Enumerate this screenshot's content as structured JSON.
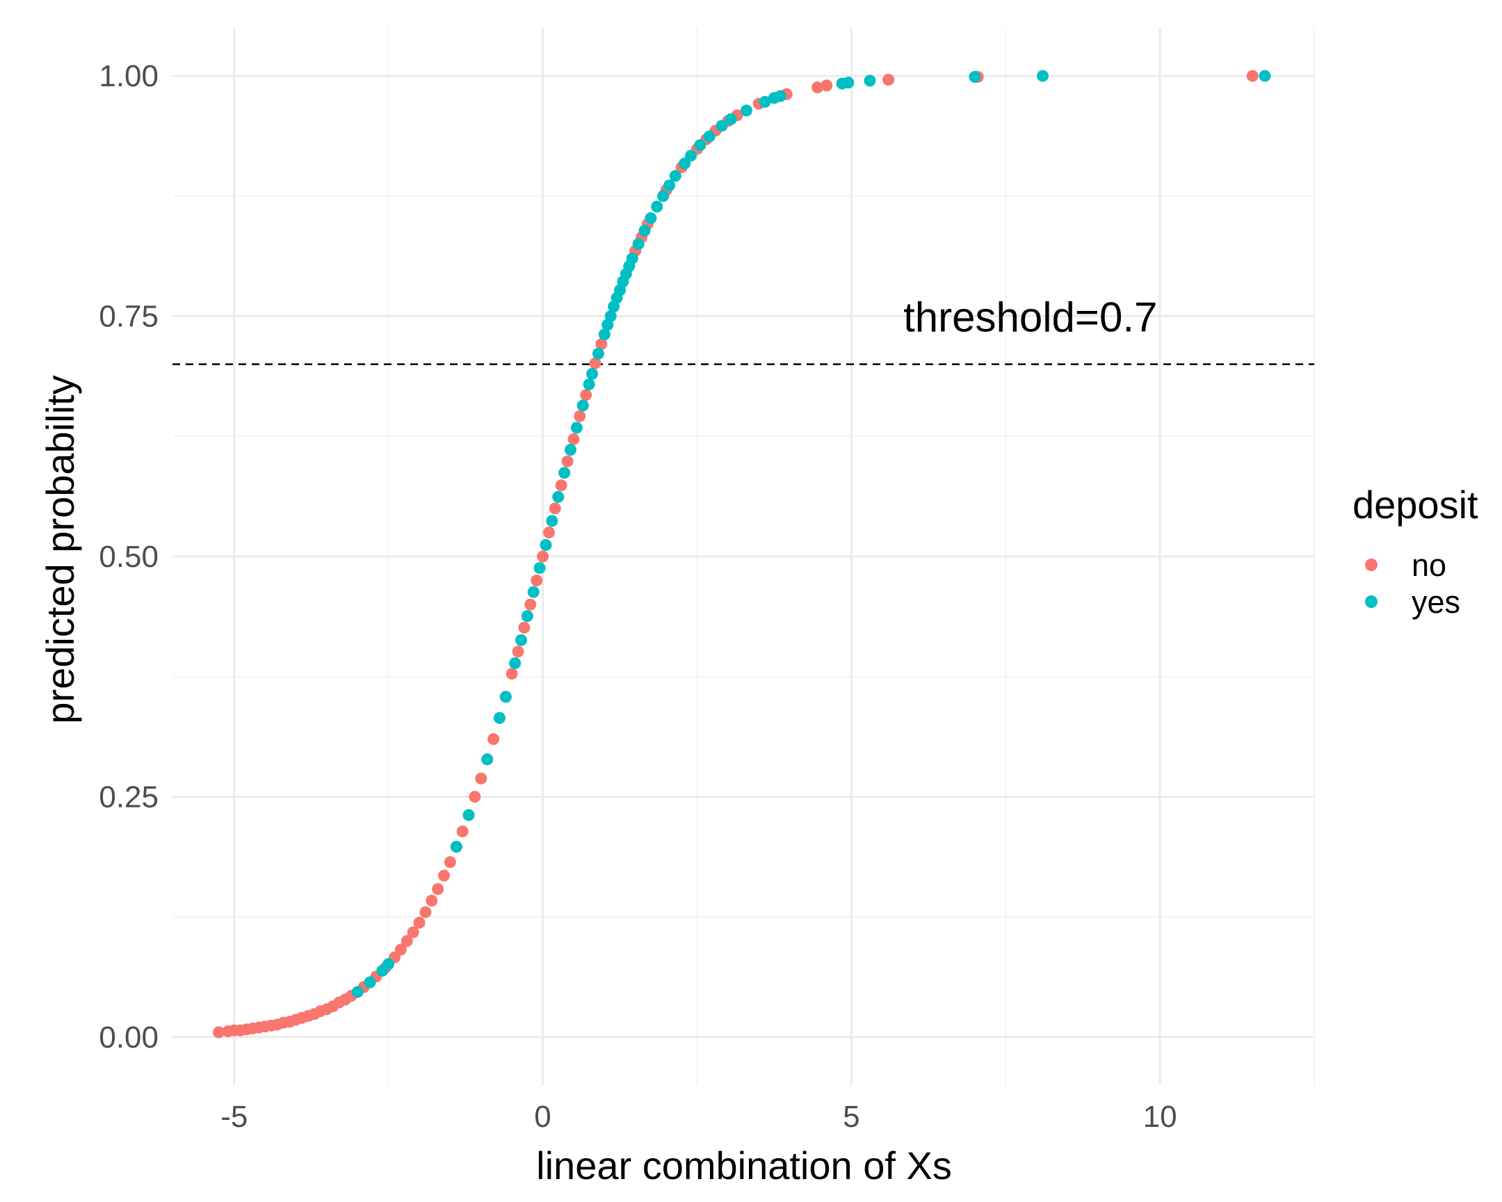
{
  "chart_data": {
    "type": "scatter",
    "title": "",
    "xlabel": "linear combination of Xs",
    "ylabel": "predicted probability",
    "xlim": [
      -6.0,
      12.5
    ],
    "ylim": [
      -0.05,
      1.05
    ],
    "x_ticks": [
      -5,
      0,
      5,
      10
    ],
    "x_tick_labels": [
      "-5",
      "0",
      "5",
      "10"
    ],
    "y_ticks": [
      0.0,
      0.25,
      0.5,
      0.75,
      1.0
    ],
    "y_tick_labels": [
      "0.00",
      "0.25",
      "0.50",
      "0.75",
      "1.00"
    ],
    "grid": true,
    "legend": {
      "title": "deposit",
      "placement": "right",
      "entries": [
        {
          "label": "no",
          "color": "#F8766D"
        },
        {
          "label": "yes",
          "color": "#00BFC4"
        }
      ]
    },
    "reference_line": {
      "y": 0.7,
      "style": "dashed",
      "color": "#000000"
    },
    "annotation": {
      "text": "threshold=0.7",
      "x": 7.9,
      "y": 0.75
    },
    "curve": "logistic: y = 1 / (1 + exp(-x))",
    "series": [
      {
        "name": "no",
        "color": "#F8766D",
        "x": [
          -5.25,
          -5.1,
          -5.0,
          -4.9,
          -4.8,
          -4.7,
          -4.6,
          -4.5,
          -4.4,
          -4.3,
          -4.2,
          -4.1,
          -4.0,
          -3.9,
          -3.8,
          -3.7,
          -3.6,
          -3.5,
          -3.4,
          -3.3,
          -3.2,
          -3.1,
          -2.9,
          -2.7,
          -2.55,
          -2.4,
          -2.3,
          -2.2,
          -2.1,
          -2.0,
          -1.9,
          -1.8,
          -1.7,
          -1.6,
          -1.5,
          -1.4,
          -1.3,
          -1.2,
          -1.1,
          -1.0,
          -0.9,
          -0.8,
          -0.7,
          -0.6,
          -0.5,
          -0.4,
          -0.3,
          -0.2,
          -0.1,
          0.0,
          0.1,
          0.2,
          0.3,
          0.4,
          0.5,
          0.6,
          0.7,
          0.85,
          0.95,
          1.5,
          1.6,
          1.7,
          2.0,
          2.25,
          2.5,
          2.65,
          2.8,
          3.0,
          3.15,
          3.5,
          3.95,
          4.45,
          4.6,
          5.6,
          7.05,
          11.5
        ],
        "y": [
          0.005,
          0.006,
          0.007,
          0.007,
          0.008,
          0.009,
          0.01,
          0.011,
          0.012,
          0.013,
          0.015,
          0.016,
          0.018,
          0.02,
          0.022,
          0.024,
          0.027,
          0.029,
          0.032,
          0.036,
          0.039,
          0.043,
          0.052,
          0.063,
          0.072,
          0.083,
          0.091,
          0.1,
          0.109,
          0.119,
          0.13,
          0.142,
          0.154,
          0.168,
          0.182,
          0.198,
          0.214,
          0.231,
          0.25,
          0.269,
          0.289,
          0.31,
          0.332,
          0.354,
          0.378,
          0.401,
          0.426,
          0.45,
          0.475,
          0.5,
          0.525,
          0.55,
          0.574,
          0.599,
          0.622,
          0.646,
          0.668,
          0.701,
          0.721,
          0.818,
          0.832,
          0.846,
          0.881,
          0.905,
          0.924,
          0.934,
          0.943,
          0.953,
          0.959,
          0.971,
          0.981,
          0.988,
          0.99,
          0.996,
          0.999,
          1.0
        ]
      },
      {
        "name": "yes",
        "color": "#00BFC4",
        "x": [
          -3.0,
          -2.8,
          -2.6,
          -2.5,
          -1.4,
          -1.2,
          -0.9,
          -0.7,
          -0.6,
          -0.45,
          -0.35,
          -0.25,
          -0.15,
          -0.05,
          0.05,
          0.15,
          0.25,
          0.35,
          0.45,
          0.55,
          0.65,
          0.75,
          0.8,
          0.9,
          1.0,
          1.05,
          1.1,
          1.15,
          1.2,
          1.25,
          1.3,
          1.35,
          1.4,
          1.45,
          1.55,
          1.65,
          1.75,
          1.85,
          1.95,
          2.05,
          2.15,
          2.3,
          2.4,
          2.55,
          2.7,
          2.9,
          3.05,
          3.3,
          3.6,
          3.75,
          3.85,
          4.85,
          4.95,
          5.3,
          7.0,
          8.1,
          11.7
        ],
        "y": [
          0.047,
          0.057,
          0.069,
          0.076,
          0.198,
          0.231,
          0.289,
          0.332,
          0.354,
          0.389,
          0.413,
          0.438,
          0.463,
          0.488,
          0.512,
          0.537,
          0.562,
          0.587,
          0.611,
          0.634,
          0.657,
          0.679,
          0.69,
          0.711,
          0.731,
          0.741,
          0.75,
          0.76,
          0.769,
          0.777,
          0.786,
          0.794,
          0.802,
          0.81,
          0.825,
          0.839,
          0.852,
          0.864,
          0.875,
          0.886,
          0.896,
          0.909,
          0.917,
          0.928,
          0.937,
          0.948,
          0.955,
          0.964,
          0.973,
          0.977,
          0.979,
          0.992,
          0.993,
          0.995,
          0.999,
          1.0,
          1.0
        ]
      }
    ]
  }
}
